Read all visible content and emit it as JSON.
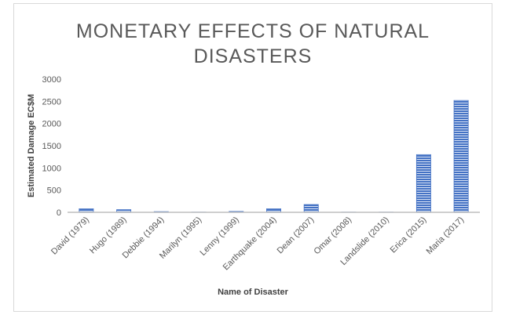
{
  "chart_data": {
    "type": "bar",
    "title_lines": [
      "MONETARY EFFECTS OF NATURAL",
      "DISASTERS"
    ],
    "xlabel": "Name of Disaster",
    "ylabel": "Estimated Damage EC$M",
    "categories": [
      "David (1979)",
      "Hugo (1989)",
      "Debbie (1994)",
      "Marilyn (1995)",
      "Lenny (1999)",
      "Earthquake (2004)",
      "Dean (2007)",
      "Omar (2008)",
      "Landslide (2010)",
      "Erica (2015)",
      "Maria (2017)"
    ],
    "values": [
      80,
      60,
      15,
      5,
      20,
      80,
      175,
      5,
      5,
      1300,
      2520
    ],
    "ylim": [
      0,
      3000
    ],
    "yticks": [
      0,
      500,
      1000,
      1500,
      2000,
      2500,
      3000
    ],
    "grid": false,
    "series_color": "#4472c4"
  }
}
